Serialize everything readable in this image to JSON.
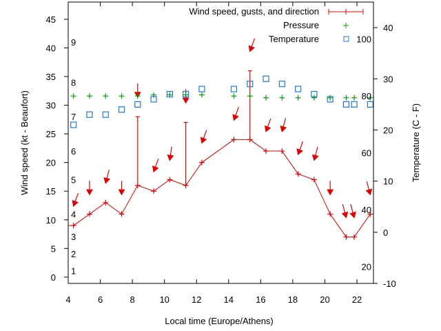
{
  "chart_data": {
    "type": "line",
    "title": "",
    "xlabel": "Local time (Europe/Athens)",
    "ylabel": "Wind speed (kt - Beaufort)",
    "y2label": "Temperature (C - F)",
    "xlim": [
      4,
      23.03
    ],
    "ylim": [
      -1.1,
      48
    ],
    "y2lim": [
      -10,
      45
    ],
    "x_ticks": [
      4,
      6,
      8,
      10,
      12,
      14,
      16,
      18,
      20,
      22
    ],
    "y_ticks": [
      0,
      5,
      10,
      15,
      20,
      25,
      30,
      35,
      40,
      45
    ],
    "y2_ticks": [
      -10,
      0,
      10,
      20,
      30,
      40
    ],
    "x_tick_labels": [
      "4",
      "6",
      "8",
      "10",
      "12",
      "14",
      "16",
      "18",
      "20",
      "22"
    ],
    "y_tick_labels": [
      "0",
      "5",
      "10",
      "15",
      "20",
      "25",
      "30",
      "35",
      "40",
      "45"
    ],
    "y2_tick_labels": [
      "-10",
      "0",
      "10",
      "20",
      "30",
      "40"
    ],
    "grid": false,
    "legend_position": "top-right",
    "beaufort_labels": [
      {
        "label": "1",
        "kt": 1.1
      },
      {
        "label": "2",
        "kt": 4.1
      },
      {
        "label": "3",
        "kt": 7.1
      },
      {
        "label": "4",
        "kt": 11
      },
      {
        "label": "5",
        "kt": 17
      },
      {
        "label": "6",
        "kt": 22
      },
      {
        "label": "7",
        "kt": 28
      },
      {
        "label": "8",
        "kt": 34
      },
      {
        "label": "9",
        "kt": 41
      }
    ],
    "fahrenheit_labels": [
      {
        "label": "100",
        "f": 100
      },
      {
        "label": "80",
        "f": 80
      },
      {
        "label": "60",
        "f": 60
      },
      {
        "label": "40",
        "f": 40
      },
      {
        "label": "20",
        "f": 20
      }
    ],
    "x": [
      4.33,
      5.33,
      6.33,
      7.33,
      8.33,
      9.33,
      10.33,
      11.33,
      12.33,
      14.33,
      15.33,
      16.33,
      17.33,
      18.33,
      19.33,
      20.33,
      21.33,
      21.83,
      22.83
    ],
    "series": [
      {
        "name": "Wind speed, gusts, and direction",
        "axis": "left",
        "color": "#e00000",
        "marker": "plus",
        "values": [
          9,
          11,
          13,
          11,
          16,
          15,
          17,
          16,
          20,
          24,
          24,
          22,
          22,
          18,
          17,
          11,
          7,
          7,
          11
        ],
        "gusts": [
          null,
          null,
          null,
          null,
          28,
          null,
          null,
          27,
          null,
          null,
          36,
          null,
          null,
          null,
          null,
          null,
          null,
          null,
          null
        ],
        "direction_deg": [
          20,
          0,
          15,
          0,
          0,
          20,
          8,
          0,
          20,
          20,
          20,
          20,
          15,
          20,
          15,
          0,
          345,
          345,
          345
        ],
        "previous_value_at_left_edge": 9
      },
      {
        "name": "Pressure",
        "axis": "left",
        "color": "#00a000",
        "marker": "plus",
        "values": [
          31.6,
          31.6,
          31.6,
          31.6,
          31.6,
          31.8,
          31.8,
          31.8,
          31.8,
          31.6,
          31.6,
          31.3,
          31.3,
          31.3,
          31.3,
          31.3,
          31.3,
          31.3,
          31.3
        ]
      },
      {
        "name": "Temperature",
        "axis": "right",
        "color": "#1e78d8",
        "marker": "square",
        "values": [
          21,
          23,
          23,
          24,
          25,
          26,
          27,
          27,
          28,
          28,
          29,
          30,
          29,
          28,
          27,
          26,
          25,
          25,
          25
        ]
      }
    ]
  }
}
